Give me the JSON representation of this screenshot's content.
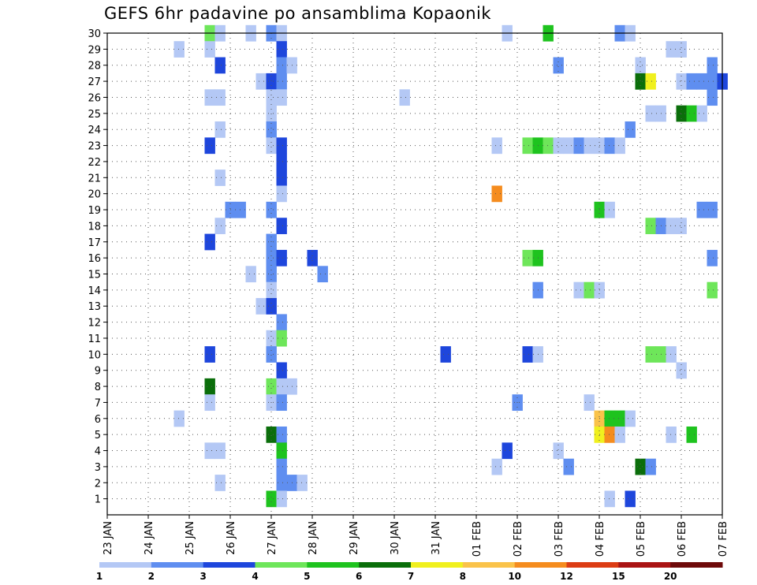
{
  "chart_data": {
    "type": "heatmap",
    "title": "GEFS 6hr padavine po ansamblima Kopaonik",
    "xlabel": "",
    "ylabel": "",
    "x_tick_labels": [
      "23 JAN",
      "24 JAN",
      "25 JAN",
      "26 JAN",
      "27 JAN",
      "28 JAN",
      "29 JAN",
      "30 JAN",
      "31 JAN",
      "01 FEB",
      "02 FEB",
      "03 FEB",
      "04 FEB",
      "05 FEB",
      "06 FEB",
      "07 FEB"
    ],
    "xlim_days": [
      0,
      15
    ],
    "y_tick_labels": [
      "1",
      "2",
      "3",
      "4",
      "5",
      "6",
      "7",
      "8",
      "9",
      "10",
      "11",
      "12",
      "13",
      "14",
      "15",
      "16",
      "17",
      "18",
      "19",
      "20",
      "21",
      "22",
      "23",
      "24",
      "25",
      "26",
      "27",
      "28",
      "29",
      "30"
    ],
    "ylim": [
      0,
      30
    ],
    "grid": true,
    "colorbar": {
      "labels": [
        "1",
        "2",
        "3",
        "4",
        "5",
        "6",
        "7",
        "8",
        "10",
        "12",
        "15",
        "20"
      ],
      "colors": [
        "#b4c8f5",
        "#5f8ef0",
        "#1e46dc",
        "#6ee65a",
        "#1ec31e",
        "#0a6e0a",
        "#f0f01e",
        "#fac34a",
        "#f58c1e",
        "#dc3c14",
        "#aa1414",
        "#6e0a0a"
      ]
    },
    "cells": [
      [
        2.5,
        30,
        4
      ],
      [
        2.75,
        30,
        1
      ],
      [
        3.5,
        30,
        1
      ],
      [
        4.0,
        30,
        2
      ],
      [
        4.25,
        30,
        1
      ],
      [
        9.75,
        30,
        1
      ],
      [
        10.75,
        30,
        5
      ],
      [
        12.5,
        30,
        2
      ],
      [
        12.75,
        30,
        1
      ],
      [
        1.75,
        29,
        1
      ],
      [
        2.5,
        29,
        1
      ],
      [
        4.25,
        29,
        3
      ],
      [
        13.75,
        29,
        1
      ],
      [
        14.0,
        29,
        1
      ],
      [
        2.75,
        28,
        3
      ],
      [
        4.25,
        28,
        2
      ],
      [
        4.5,
        28,
        1
      ],
      [
        13.0,
        28,
        1
      ],
      [
        11.0,
        28,
        2
      ],
      [
        14.75,
        28,
        2
      ],
      [
        3.75,
        27,
        1
      ],
      [
        4.0,
        27,
        3
      ],
      [
        4.25,
        27,
        2
      ],
      [
        13.0,
        27,
        6
      ],
      [
        13.25,
        27,
        7
      ],
      [
        14.0,
        27,
        1
      ],
      [
        14.25,
        27,
        2
      ],
      [
        14.5,
        27,
        2
      ],
      [
        14.75,
        27,
        2
      ],
      [
        15.0,
        27,
        3
      ],
      [
        2.5,
        26,
        1
      ],
      [
        2.75,
        26,
        1
      ],
      [
        4.0,
        26,
        1
      ],
      [
        4.25,
        26,
        1
      ],
      [
        7.25,
        26,
        1
      ],
      [
        14.75,
        26,
        2
      ],
      [
        4.0,
        25,
        1
      ],
      [
        13.25,
        25,
        1
      ],
      [
        13.5,
        25,
        1
      ],
      [
        14.0,
        25,
        6
      ],
      [
        14.25,
        25,
        5
      ],
      [
        14.5,
        25,
        1
      ],
      [
        2.75,
        24,
        1
      ],
      [
        4.0,
        24,
        2
      ],
      [
        12.75,
        24,
        2
      ],
      [
        2.5,
        23,
        3
      ],
      [
        4.0,
        23,
        1
      ],
      [
        4.25,
        23,
        3
      ],
      [
        9.5,
        23,
        1
      ],
      [
        10.25,
        23,
        4
      ],
      [
        10.5,
        23,
        5
      ],
      [
        10.75,
        23,
        4
      ],
      [
        11.0,
        23,
        1
      ],
      [
        11.25,
        23,
        1
      ],
      [
        11.5,
        23,
        2
      ],
      [
        11.75,
        23,
        1
      ],
      [
        12.0,
        23,
        1
      ],
      [
        12.25,
        23,
        2
      ],
      [
        12.5,
        23,
        1
      ],
      [
        4.25,
        22,
        3
      ],
      [
        2.75,
        21,
        1
      ],
      [
        4.25,
        21,
        3
      ],
      [
        4.25,
        20,
        1
      ],
      [
        9.5,
        20,
        9
      ],
      [
        3.0,
        19,
        2
      ],
      [
        3.25,
        19,
        2
      ],
      [
        4.0,
        19,
        2
      ],
      [
        12.0,
        19,
        5
      ],
      [
        12.25,
        19,
        1
      ],
      [
        14.5,
        19,
        2
      ],
      [
        14.75,
        19,
        2
      ],
      [
        2.75,
        18,
        1
      ],
      [
        4.25,
        18,
        3
      ],
      [
        13.25,
        18,
        4
      ],
      [
        13.5,
        18,
        2
      ],
      [
        13.75,
        18,
        1
      ],
      [
        14.0,
        18,
        1
      ],
      [
        2.5,
        17,
        3
      ],
      [
        4.0,
        17,
        2
      ],
      [
        4.0,
        16,
        2
      ],
      [
        4.25,
        16,
        3
      ],
      [
        5.0,
        16,
        3
      ],
      [
        10.25,
        16,
        4
      ],
      [
        10.5,
        16,
        5
      ],
      [
        14.75,
        16,
        2
      ],
      [
        3.5,
        15,
        1
      ],
      [
        4.0,
        15,
        2
      ],
      [
        5.25,
        15,
        2
      ],
      [
        4.0,
        14,
        1
      ],
      [
        10.5,
        14,
        2
      ],
      [
        11.5,
        14,
        1
      ],
      [
        11.75,
        14,
        4
      ],
      [
        12.0,
        14,
        1
      ],
      [
        14.75,
        14,
        4
      ],
      [
        3.75,
        13,
        1
      ],
      [
        4.0,
        13,
        3
      ],
      [
        4.25,
        12,
        2
      ],
      [
        4.0,
        11,
        1
      ],
      [
        4.25,
        11,
        4
      ],
      [
        2.5,
        10,
        3
      ],
      [
        4.0,
        10,
        2
      ],
      [
        8.25,
        10,
        3
      ],
      [
        10.25,
        10,
        3
      ],
      [
        10.5,
        10,
        1
      ],
      [
        13.25,
        10,
        4
      ],
      [
        13.5,
        10,
        4
      ],
      [
        13.75,
        10,
        1
      ],
      [
        4.25,
        9,
        3
      ],
      [
        14.0,
        9,
        1
      ],
      [
        2.5,
        8,
        6
      ],
      [
        4.0,
        8,
        4
      ],
      [
        4.25,
        8,
        1
      ],
      [
        4.5,
        8,
        1
      ],
      [
        2.5,
        7,
        1
      ],
      [
        4.0,
        7,
        1
      ],
      [
        4.25,
        7,
        2
      ],
      [
        10.0,
        7,
        2
      ],
      [
        11.75,
        7,
        1
      ],
      [
        1.75,
        6,
        1
      ],
      [
        12.0,
        6,
        8
      ],
      [
        12.25,
        6,
        5
      ],
      [
        12.5,
        6,
        5
      ],
      [
        12.75,
        6,
        1
      ],
      [
        4.0,
        5,
        6
      ],
      [
        4.25,
        5,
        2
      ],
      [
        12.0,
        5,
        7
      ],
      [
        12.25,
        5,
        9
      ],
      [
        12.5,
        5,
        1
      ],
      [
        13.75,
        5,
        1
      ],
      [
        14.25,
        5,
        5
      ],
      [
        2.5,
        4,
        1
      ],
      [
        2.75,
        4,
        1
      ],
      [
        4.25,
        4,
        5
      ],
      [
        9.75,
        4,
        3
      ],
      [
        11.0,
        4,
        1
      ],
      [
        4.25,
        3,
        2
      ],
      [
        9.5,
        3,
        1
      ],
      [
        11.25,
        3,
        2
      ],
      [
        13.0,
        3,
        6
      ],
      [
        13.25,
        3,
        2
      ],
      [
        2.75,
        2,
        1
      ],
      [
        4.25,
        2,
        2
      ],
      [
        4.5,
        2,
        2
      ],
      [
        4.75,
        2,
        1
      ],
      [
        4.0,
        1,
        5
      ],
      [
        4.25,
        1,
        1
      ],
      [
        12.25,
        1,
        1
      ],
      [
        12.75,
        1,
        3
      ]
    ]
  }
}
